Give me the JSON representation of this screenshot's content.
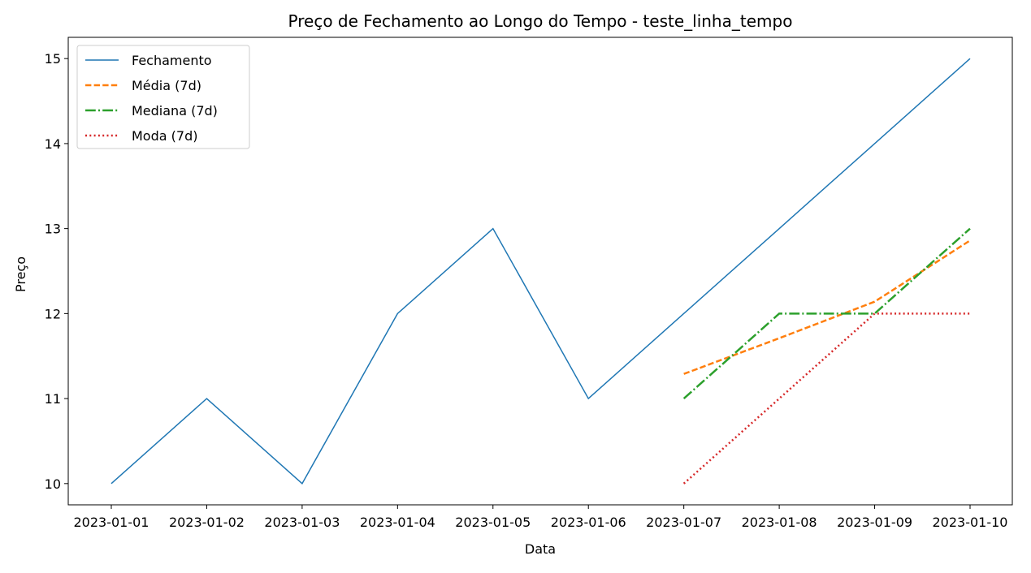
{
  "chart_data": {
    "type": "line",
    "title": "Preço de Fechamento ao Longo do Tempo - teste_linha_tempo",
    "xlabel": "Data",
    "ylabel": "Preço",
    "x": [
      "2023-01-01",
      "2023-01-02",
      "2023-01-03",
      "2023-01-04",
      "2023-01-05",
      "2023-01-06",
      "2023-01-07",
      "2023-01-08",
      "2023-01-09",
      "2023-01-10"
    ],
    "ylim": [
      9.75,
      15.25
    ],
    "yticks": [
      10,
      11,
      12,
      13,
      14,
      15
    ],
    "grid": false,
    "legend_position": "top-left",
    "series": [
      {
        "name": "Fechamento",
        "color": "#1f77b4",
        "style": "solid",
        "values": [
          10,
          11,
          10,
          12,
          13,
          11,
          12,
          13,
          14,
          15
        ]
      },
      {
        "name": "Média (7d)",
        "color": "#ff7f0e",
        "style": "dashed",
        "values": [
          null,
          null,
          null,
          null,
          null,
          null,
          11.29,
          11.71,
          12.14,
          12.86
        ]
      },
      {
        "name": "Mediana (7d)",
        "color": "#2ca02c",
        "style": "dashdot",
        "values": [
          null,
          null,
          null,
          null,
          null,
          null,
          11,
          12,
          12,
          13
        ]
      },
      {
        "name": "Moda (7d)",
        "color": "#d62728",
        "style": "dotted",
        "values": [
          null,
          null,
          null,
          null,
          null,
          null,
          10,
          11,
          12,
          12
        ]
      }
    ]
  }
}
